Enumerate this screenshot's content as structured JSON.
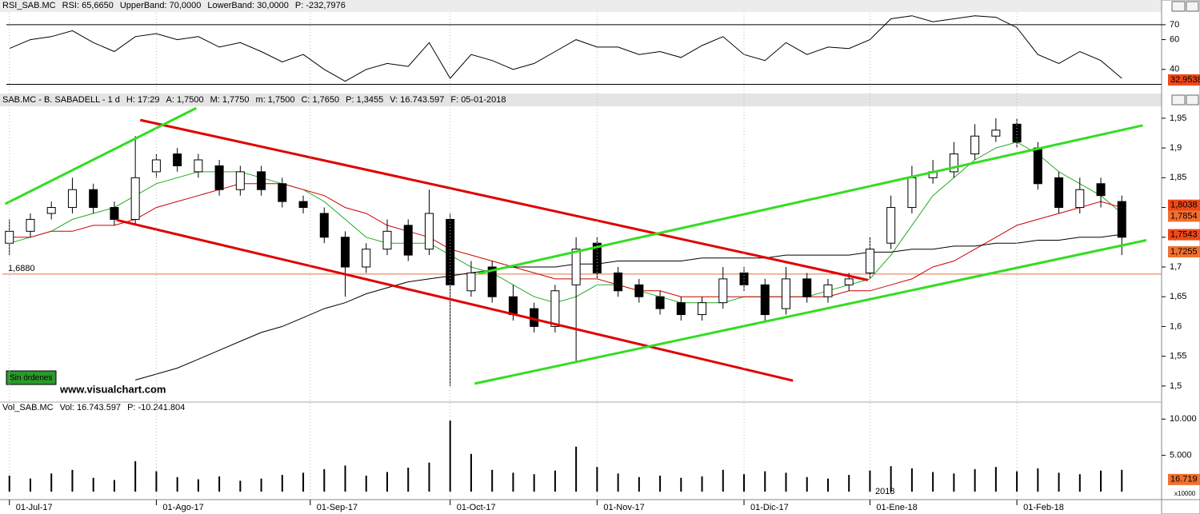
{
  "chart_data": [
    {
      "type": "line",
      "header": [
        {
          "text": "RSI_SAB.MC"
        },
        {
          "text": "RSI: 65,6650"
        },
        {
          "text": "UpperBand: 70,0000"
        },
        {
          "text": "LowerBand: 30,0000"
        },
        {
          "text": "P: -232,7976",
          "color": "#d00000"
        }
      ],
      "xlim": [
        -1,
        164
      ],
      "ylim": [
        26.5,
        78
      ],
      "yticks": [
        70,
        60,
        40
      ],
      "hlines": [
        70,
        30
      ],
      "x": [
        0,
        3,
        6,
        9,
        12,
        15,
        18,
        21,
        24,
        27,
        30,
        33,
        36,
        39,
        42,
        45,
        48,
        51,
        54,
        57,
        60,
        63,
        66,
        69,
        72,
        75,
        78,
        81,
        84,
        87,
        90,
        93,
        96,
        99,
        102,
        105,
        108,
        111,
        114,
        117,
        120,
        123,
        126,
        129,
        132,
        135,
        138,
        141,
        144,
        147,
        150,
        153,
        156,
        159
      ],
      "series": [
        {
          "name": "RSI",
          "color": "#000000",
          "values": [
            54,
            60,
            62,
            66,
            58,
            52,
            62,
            64,
            60,
            62,
            55,
            58,
            52,
            45,
            50,
            40,
            32,
            40,
            44,
            42,
            58,
            34,
            50,
            46,
            40,
            44,
            52,
            60,
            55,
            55,
            50,
            52,
            48,
            56,
            62,
            50,
            46,
            58,
            50,
            55,
            54,
            60,
            74,
            76,
            72,
            74,
            76,
            75,
            68,
            50,
            44,
            52,
            46,
            34
          ]
        }
      ],
      "last_labels": [
        {
          "value": 32.9538,
          "label": "32,9538",
          "color": "#f04818"
        }
      ]
    },
    {
      "type": "candlestick",
      "header": [
        {
          "text": "SAB.MC - B. SABADELL - 1 d"
        },
        {
          "text": "H: 17:29"
        },
        {
          "text": "A: 1,7500"
        },
        {
          "text": "M: 1,7750"
        },
        {
          "text": "m: 1,7500"
        },
        {
          "text": "C: 1,7650"
        },
        {
          "text": "P: 1,3455",
          "color": "#d00000"
        },
        {
          "text": "V: 16.743.597"
        },
        {
          "text": "F: 05-01-2018"
        }
      ],
      "xlim": [
        -1,
        164
      ],
      "ylim": [
        1.477,
        1.97
      ],
      "yticks": [
        {
          "value": 1.5,
          "label": "1,5"
        },
        {
          "value": 1.55,
          "label": "1,55"
        },
        {
          "value": 1.6,
          "label": "1,6"
        },
        {
          "value": 1.65,
          "label": "1,65"
        },
        {
          "value": 1.7,
          "label": "1,7"
        },
        {
          "value": 1.75,
          "label": "1,75"
        },
        {
          "value": 1.8,
          "label": "1,8"
        },
        {
          "value": 1.85,
          "label": "1,85"
        },
        {
          "value": 1.9,
          "label": "1,9"
        },
        {
          "value": 1.95,
          "label": "1,95"
        }
      ],
      "x": [
        0,
        3,
        6,
        9,
        12,
        15,
        18,
        21,
        24,
        27,
        30,
        33,
        36,
        39,
        42,
        45,
        48,
        51,
        54,
        57,
        60,
        63,
        66,
        69,
        72,
        75,
        78,
        81,
        84,
        87,
        90,
        93,
        96,
        99,
        102,
        105,
        108,
        111,
        114,
        117,
        120,
        123,
        126,
        129,
        132,
        135,
        138,
        141,
        144,
        147,
        150,
        153,
        156,
        159
      ],
      "open": [
        1.74,
        1.76,
        1.79,
        1.8,
        1.83,
        1.8,
        1.78,
        1.86,
        1.89,
        1.86,
        1.87,
        1.83,
        1.86,
        1.84,
        1.81,
        1.79,
        1.75,
        1.7,
        1.73,
        1.77,
        1.73,
        1.78,
        1.66,
        1.7,
        1.65,
        1.63,
        1.6,
        1.67,
        1.74,
        1.69,
        1.67,
        1.65,
        1.64,
        1.62,
        1.64,
        1.69,
        1.67,
        1.63,
        1.68,
        1.65,
        1.67,
        1.69,
        1.74,
        1.8,
        1.85,
        1.86,
        1.89,
        1.92,
        1.94,
        1.9,
        1.85,
        1.8,
        1.84,
        1.81
      ],
      "high": [
        1.78,
        1.79,
        1.81,
        1.85,
        1.84,
        1.81,
        1.92,
        1.89,
        1.9,
        1.89,
        1.88,
        1.87,
        1.87,
        1.85,
        1.82,
        1.8,
        1.76,
        1.74,
        1.78,
        1.78,
        1.83,
        1.79,
        1.71,
        1.71,
        1.67,
        1.64,
        1.67,
        1.75,
        1.75,
        1.7,
        1.68,
        1.66,
        1.65,
        1.65,
        1.7,
        1.7,
        1.68,
        1.7,
        1.69,
        1.68,
        1.69,
        1.75,
        1.82,
        1.87,
        1.88,
        1.91,
        1.94,
        1.95,
        1.95,
        1.91,
        1.86,
        1.85,
        1.85,
        1.82
      ],
      "low": [
        1.72,
        1.75,
        1.78,
        1.79,
        1.79,
        1.77,
        1.77,
        1.85,
        1.86,
        1.85,
        1.82,
        1.82,
        1.82,
        1.8,
        1.79,
        1.74,
        1.65,
        1.69,
        1.72,
        1.71,
        1.72,
        1.5,
        1.65,
        1.64,
        1.61,
        1.59,
        1.59,
        1.54,
        1.68,
        1.65,
        1.64,
        1.62,
        1.61,
        1.61,
        1.63,
        1.66,
        1.61,
        1.62,
        1.64,
        1.64,
        1.66,
        1.68,
        1.73,
        1.79,
        1.84,
        1.85,
        1.88,
        1.91,
        1.9,
        1.83,
        1.79,
        1.79,
        1.8,
        1.72
      ],
      "close": [
        1.76,
        1.78,
        1.8,
        1.83,
        1.8,
        1.78,
        1.85,
        1.88,
        1.87,
        1.88,
        1.83,
        1.86,
        1.83,
        1.81,
        1.8,
        1.75,
        1.7,
        1.73,
        1.76,
        1.72,
        1.79,
        1.67,
        1.69,
        1.65,
        1.62,
        1.6,
        1.66,
        1.73,
        1.69,
        1.66,
        1.65,
        1.63,
        1.62,
        1.64,
        1.68,
        1.67,
        1.62,
        1.68,
        1.65,
        1.67,
        1.68,
        1.73,
        1.8,
        1.85,
        1.86,
        1.89,
        1.92,
        1.93,
        1.91,
        1.84,
        1.8,
        1.83,
        1.82,
        1.75
      ],
      "series": [
        {
          "color": "#22aa22",
          "values": [
            1.74,
            1.75,
            1.76,
            1.78,
            1.79,
            1.8,
            1.82,
            1.84,
            1.85,
            1.86,
            1.86,
            1.86,
            1.85,
            1.84,
            1.83,
            1.81,
            1.78,
            1.75,
            1.74,
            1.74,
            1.74,
            1.72,
            1.7,
            1.69,
            1.67,
            1.65,
            1.64,
            1.65,
            1.67,
            1.67,
            1.66,
            1.65,
            1.64,
            1.64,
            1.64,
            1.65,
            1.65,
            1.65,
            1.65,
            1.66,
            1.67,
            1.68,
            1.72,
            1.77,
            1.82,
            1.85,
            1.88,
            1.9,
            1.91,
            1.89,
            1.86,
            1.84,
            1.82,
            1.79
          ]
        },
        {
          "color": "#cc0000",
          "values": [
            1.75,
            1.75,
            1.76,
            1.76,
            1.77,
            1.77,
            1.78,
            1.8,
            1.81,
            1.82,
            1.83,
            1.84,
            1.84,
            1.84,
            1.83,
            1.82,
            1.8,
            1.79,
            1.77,
            1.76,
            1.75,
            1.73,
            1.72,
            1.71,
            1.7,
            1.69,
            1.68,
            1.68,
            1.68,
            1.67,
            1.66,
            1.66,
            1.65,
            1.65,
            1.65,
            1.65,
            1.65,
            1.65,
            1.65,
            1.65,
            1.66,
            1.66,
            1.67,
            1.68,
            1.7,
            1.71,
            1.73,
            1.75,
            1.77,
            1.78,
            1.79,
            1.8,
            1.81,
            1.8
          ]
        },
        {
          "color": "#000000",
          "values": [
            null,
            null,
            null,
            null,
            null,
            null,
            1.51,
            1.52,
            1.53,
            1.545,
            1.56,
            1.575,
            1.59,
            1.6,
            1.615,
            1.63,
            1.64,
            1.655,
            1.665,
            1.675,
            1.68,
            1.685,
            1.69,
            1.695,
            1.7,
            1.7,
            1.7,
            1.705,
            1.705,
            1.71,
            1.71,
            1.71,
            1.71,
            1.715,
            1.715,
            1.715,
            1.715,
            1.72,
            1.72,
            1.72,
            1.72,
            1.725,
            1.725,
            1.73,
            1.73,
            1.735,
            1.735,
            1.74,
            1.74,
            1.745,
            1.745,
            1.75,
            1.75,
            1.755
          ]
        }
      ],
      "trend_lines": [
        {
          "color": "#e00000",
          "x": [
            18.7,
            122.7
          ],
          "y": [
            1.947,
            1.678
          ]
        },
        {
          "color": "#e00000",
          "x": [
            15.3,
            112
          ],
          "y": [
            1.779,
            1.509
          ]
        },
        {
          "color": "#33dd22",
          "x": [
            66.5,
            162.5
          ],
          "y": [
            1.504,
            1.745
          ]
        },
        {
          "color": "#33dd22",
          "x": [
            67,
            162
          ],
          "y": [
            1.689,
            1.938
          ]
        },
        {
          "color": "#33dd22",
          "x": [
            -0.6,
            26.7
          ],
          "y": [
            1.806,
            1.967
          ]
        }
      ],
      "level": {
        "value": 1.688,
        "label": "1,6880",
        "color": "#e07040"
      },
      "last_labels": [
        {
          "value": 1.8038,
          "label": "1,8038",
          "color": "#f04818"
        },
        {
          "value": 1.7854,
          "label": "1,7854",
          "color": "#f07030"
        },
        {
          "value": 1.7543,
          "label": "1,7543",
          "color": "#f04818"
        },
        {
          "value": 1.7255,
          "label": "1,7255",
          "color": "#f07030"
        }
      ],
      "status": "Sin órdenes",
      "watermark": "www.visualchart.com"
    },
    {
      "type": "bar",
      "header": [
        {
          "text": "Vol_SAB.MC"
        },
        {
          "text": "Vol: 16.743.597"
        },
        {
          "text": "P: -10.241.804",
          "color": "#d00000"
        }
      ],
      "xlim": [
        -1,
        164
      ],
      "ylim": [
        0,
        10800
      ],
      "yticks": [
        {
          "value": 5000,
          "label": "5.000"
        },
        {
          "value": 10000,
          "label": "10.000"
        }
      ],
      "unit": "x10000",
      "year_label": "2018",
      "x": [
        0,
        3,
        6,
        9,
        12,
        15,
        18,
        21,
        24,
        27,
        30,
        33,
        36,
        39,
        42,
        45,
        48,
        51,
        54,
        57,
        60,
        63,
        66,
        69,
        72,
        75,
        78,
        81,
        84,
        87,
        90,
        93,
        96,
        99,
        102,
        105,
        108,
        111,
        114,
        117,
        120,
        123,
        126,
        129,
        132,
        135,
        138,
        141,
        144,
        147,
        150,
        153,
        156,
        159
      ],
      "values": [
        2200,
        1800,
        2500,
        3000,
        1900,
        1600,
        4200,
        2800,
        2000,
        1700,
        2100,
        1500,
        1800,
        2300,
        2600,
        3100,
        3600,
        2200,
        2700,
        3300,
        4000,
        9800,
        5200,
        3000,
        2600,
        2400,
        2900,
        6200,
        3400,
        2500,
        2000,
        2200,
        1900,
        2100,
        3000,
        2400,
        2800,
        2600,
        2000,
        1800,
        2300,
        2900,
        3500,
        3200,
        2700,
        2500,
        3100,
        3400,
        2800,
        3200,
        2600,
        2400,
        2900,
        3000
      ],
      "color": "#000000",
      "xticks": [
        {
          "value": 0,
          "label": "01-Jul-17"
        },
        {
          "value": 21,
          "label": "01-Ago-17"
        },
        {
          "value": 43,
          "label": "01-Sep-17"
        },
        {
          "value": 63,
          "label": "01-Oct-17"
        },
        {
          "value": 84,
          "label": "01-Nov-17"
        },
        {
          "value": 105,
          "label": "01-Dic-17"
        },
        {
          "value": 123,
          "label": "01-Ene-18"
        },
        {
          "value": 144,
          "label": "01-Feb-18"
        }
      ],
      "last_labels": [
        {
          "value": 1671.9,
          "label": "16.719",
          "color": "#f07030"
        }
      ]
    }
  ]
}
